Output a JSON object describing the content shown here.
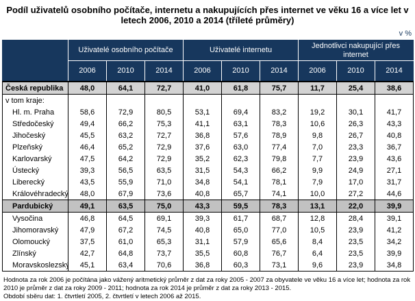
{
  "title": "Podíl uživatelů osobního počítače, internetu a nakupujících přes internet ve věku 16 a více let v letech 2006, 2010 a 2014 (tříleté průměry)",
  "unit_label": "v %",
  "table": {
    "column_groups": [
      "Uživatelé osobního počítače",
      "Uživatelé internetu",
      "Jednotlivci nakupující přes internet"
    ],
    "year_headers": [
      "2006",
      "2010",
      "2014",
      "2006",
      "2010",
      "2014",
      "2006",
      "2010",
      "2014"
    ],
    "rows": [
      {
        "label": "Česká republika",
        "style": "total",
        "values": [
          "48,0",
          "64,1",
          "72,7",
          "41,0",
          "61,8",
          "75,7",
          "11,7",
          "25,4",
          "38,6"
        ]
      },
      {
        "label": "v tom kraje:",
        "style": "subheader",
        "values": [
          "",
          "",
          "",
          "",
          "",
          "",
          "",
          "",
          ""
        ]
      },
      {
        "label": "Hl. m. Praha",
        "style": "region",
        "values": [
          "58,6",
          "72,9",
          "80,5",
          "53,1",
          "69,4",
          "83,2",
          "19,2",
          "30,1",
          "41,7"
        ]
      },
      {
        "label": "Středočeský",
        "style": "region",
        "values": [
          "49,4",
          "66,2",
          "75,3",
          "41,1",
          "63,1",
          "78,3",
          "10,6",
          "26,3",
          "43,3"
        ]
      },
      {
        "label": "Jihočeský",
        "style": "region",
        "values": [
          "45,5",
          "63,2",
          "72,7",
          "36,8",
          "57,6",
          "78,9",
          "9,8",
          "26,7",
          "40,8"
        ]
      },
      {
        "label": "Plzeňský",
        "style": "region",
        "values": [
          "46,4",
          "65,2",
          "72,9",
          "37,6",
          "63,0",
          "77,4",
          "7,0",
          "23,3",
          "36,7"
        ]
      },
      {
        "label": "Karlovarský",
        "style": "region",
        "values": [
          "47,5",
          "64,2",
          "72,9",
          "35,2",
          "62,3",
          "79,8",
          "7,7",
          "23,9",
          "43,6"
        ]
      },
      {
        "label": "Ústecký",
        "style": "region",
        "values": [
          "39,3",
          "56,5",
          "63,5",
          "31,5",
          "54,3",
          "66,2",
          "9,9",
          "24,9",
          "27,1"
        ]
      },
      {
        "label": "Liberecký",
        "style": "region",
        "values": [
          "43,5",
          "55,9",
          "71,0",
          "34,8",
          "54,1",
          "78,1",
          "7,9",
          "17,0",
          "31,7"
        ]
      },
      {
        "label": "Královéhradecký",
        "style": "region",
        "values": [
          "48,0",
          "67,9",
          "73,6",
          "40,8",
          "65,7",
          "74,1",
          "10,0",
          "27,2",
          "44,6"
        ]
      },
      {
        "label": "Pardubický",
        "style": "highlight",
        "values": [
          "49,1",
          "63,5",
          "75,0",
          "43,3",
          "59,5",
          "78,3",
          "13,1",
          "22,0",
          "39,9"
        ]
      },
      {
        "label": "Vysočina",
        "style": "region",
        "values": [
          "46,8",
          "64,5",
          "69,1",
          "39,3",
          "61,7",
          "68,7",
          "12,8",
          "28,4",
          "39,1"
        ]
      },
      {
        "label": "Jihomoravský",
        "style": "region",
        "values": [
          "47,9",
          "67,2",
          "74,5",
          "40,8",
          "65,0",
          "77,0",
          "10,5",
          "23,9",
          "41,2"
        ]
      },
      {
        "label": "Olomoucký",
        "style": "region",
        "values": [
          "37,5",
          "61,0",
          "65,3",
          "31,1",
          "57,9",
          "65,6",
          "8,4",
          "23,5",
          "34,2"
        ]
      },
      {
        "label": "Zlínský",
        "style": "region",
        "values": [
          "42,7",
          "64,8",
          "73,7",
          "35,5",
          "60,8",
          "76,7",
          "6,4",
          "23,5",
          "39,9"
        ]
      },
      {
        "label": "Moravskoslezský",
        "style": "region",
        "values": [
          "45,1",
          "63,4",
          "70,6",
          "36,8",
          "60,3",
          "73,1",
          "9,6",
          "23,9",
          "34,8"
        ]
      }
    ]
  },
  "footnotes": [
    "Hodnota za rok 2006 je počítána jako vážený aritmetický průměr z dat za roky 2005 - 2007 za obyvatele ve věku 16 a více let; hodnota za rok 2010 je průměr z dat za roky 2009 - 2011; hodnota za rok 2014 je průměr z dat za roky 2013 - 2015.",
    "Období sběru dat: 1. čtvrtletí 2005, 2. čtvrtletí v letech 2006 až 2015."
  ],
  "colors": {
    "header_bg": "#17375D",
    "header_text": "#FFFFFF",
    "total_row_bg": "#D3D3D3",
    "highlight_row_bg": "#C2C2C2",
    "border": "#000000"
  },
  "chart_data": {
    "type": "table",
    "title": "Podíl uživatelů osobního počítače, internetu a nakupujících přes internet ve věku 16 a více let v letech 2006, 2010 a 2014 (tříleté průměry)",
    "unit": "%",
    "column_groups": [
      "Uživatelé osobního počítače",
      "Uživatelé internetu",
      "Jednotlivci nakupující přes internet"
    ],
    "years": [
      2006,
      2010,
      2014
    ],
    "categories": [
      "Česká republika",
      "Hl. m. Praha",
      "Středočeský",
      "Jihočeský",
      "Plzeňský",
      "Karlovarský",
      "Ústecký",
      "Liberecký",
      "Královéhradecký",
      "Pardubický",
      "Vysočina",
      "Jihomoravský",
      "Olomoucký",
      "Zlínský",
      "Moravskoslezský"
    ],
    "series": [
      {
        "name": "Uživatelé osobního počítače 2006",
        "values": [
          48.0,
          58.6,
          49.4,
          45.5,
          46.4,
          47.5,
          39.3,
          43.5,
          48.0,
          49.1,
          46.8,
          47.9,
          37.5,
          42.7,
          45.1
        ]
      },
      {
        "name": "Uživatelé osobního počítače 2010",
        "values": [
          64.1,
          72.9,
          66.2,
          63.2,
          65.2,
          64.2,
          56.5,
          55.9,
          67.9,
          63.5,
          64.5,
          67.2,
          61.0,
          64.8,
          63.4
        ]
      },
      {
        "name": "Uživatelé osobního počítače 2014",
        "values": [
          72.7,
          80.5,
          75.3,
          72.7,
          72.9,
          72.9,
          63.5,
          71.0,
          73.6,
          75.0,
          69.1,
          74.5,
          65.3,
          73.7,
          70.6
        ]
      },
      {
        "name": "Uživatelé internetu 2006",
        "values": [
          41.0,
          53.1,
          41.1,
          36.8,
          37.6,
          35.2,
          31.5,
          34.8,
          40.8,
          43.3,
          39.3,
          40.8,
          31.1,
          35.5,
          36.8
        ]
      },
      {
        "name": "Uživatelé internetu 2010",
        "values": [
          61.8,
          69.4,
          63.1,
          57.6,
          63.0,
          62.3,
          54.3,
          54.1,
          65.7,
          59.5,
          61.7,
          65.0,
          57.9,
          60.8,
          60.3
        ]
      },
      {
        "name": "Uživatelé internetu 2014",
        "values": [
          75.7,
          83.2,
          78.3,
          78.9,
          77.4,
          79.8,
          66.2,
          78.1,
          74.1,
          78.3,
          68.7,
          77.0,
          65.6,
          76.7,
          73.1
        ]
      },
      {
        "name": "Jednotlivci nakupující přes internet 2006",
        "values": [
          11.7,
          19.2,
          10.6,
          9.8,
          7.0,
          7.7,
          9.9,
          7.9,
          10.0,
          13.1,
          12.8,
          10.5,
          8.4,
          6.4,
          9.6
        ]
      },
      {
        "name": "Jednotlivci nakupující přes internet 2010",
        "values": [
          25.4,
          30.1,
          26.3,
          26.7,
          23.3,
          23.9,
          24.9,
          17.0,
          27.2,
          22.0,
          28.4,
          23.9,
          23.5,
          23.5,
          23.9
        ]
      },
      {
        "name": "Jednotlivci nakupující přes internet 2014",
        "values": [
          38.6,
          41.7,
          43.3,
          40.8,
          36.7,
          43.6,
          27.1,
          31.7,
          44.6,
          39.9,
          39.1,
          41.2,
          34.2,
          39.9,
          34.8
        ]
      }
    ]
  }
}
